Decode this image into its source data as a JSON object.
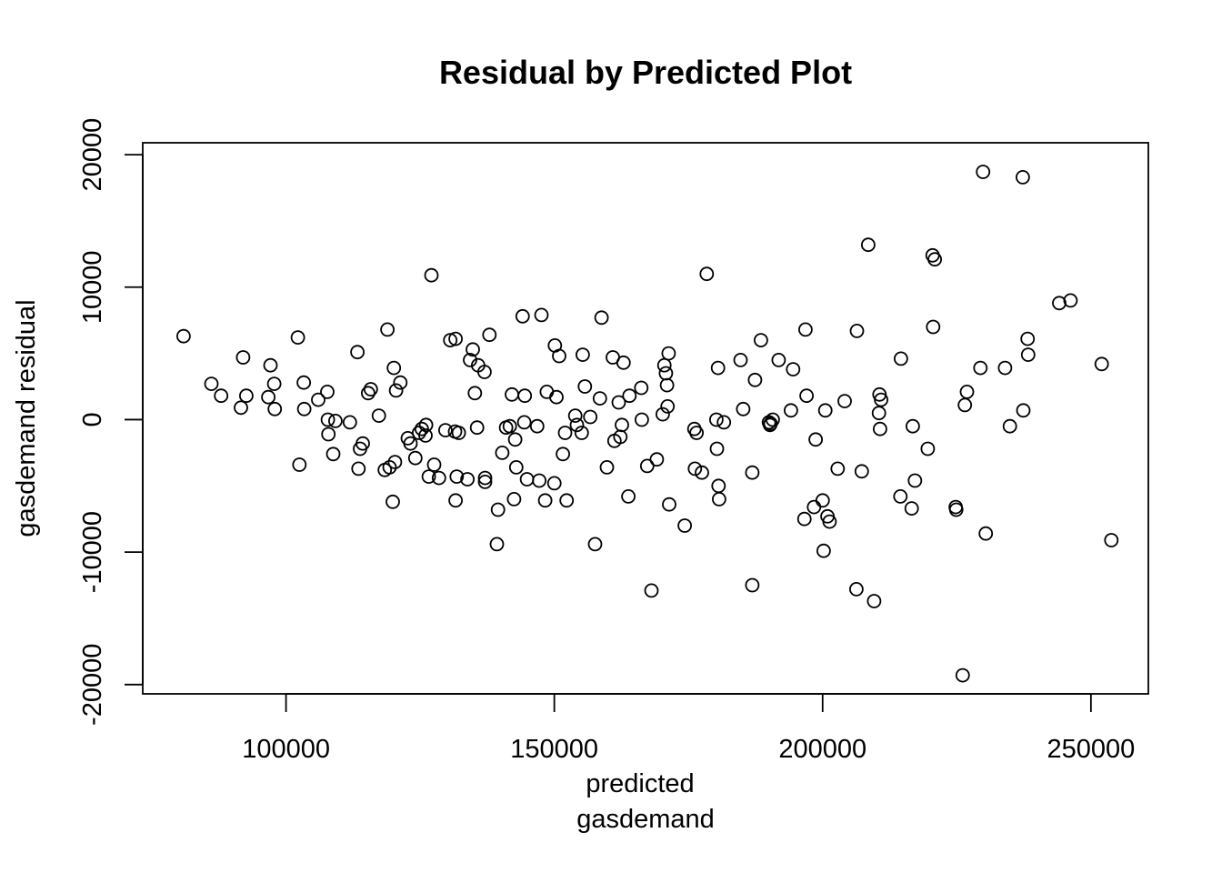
{
  "chart_data": {
    "type": "scatter",
    "title": "Residual by Predicted Plot",
    "xlabel_lines": [
      "predicted",
      "gasdemand"
    ],
    "ylabel": "gasdemand residual",
    "xlim": [
      73300,
      260700
    ],
    "ylim": [
      -20700,
      20900
    ],
    "x_ticks": [
      100000,
      150000,
      200000,
      250000
    ],
    "x_tick_labels": [
      "100000",
      "150000",
      "200000",
      "250000"
    ],
    "y_ticks": [
      -20000,
      -10000,
      0,
      10000,
      20000
    ],
    "y_tick_labels": [
      "-20000",
      "-10000",
      "0",
      "10000",
      "20000"
    ],
    "grid": false,
    "legend": "none",
    "marker": "open-circle",
    "points": [
      [
        80900,
        6300
      ],
      [
        86100,
        2700
      ],
      [
        87900,
        1800
      ],
      [
        91600,
        900
      ],
      [
        92000,
        4700
      ],
      [
        92600,
        1800
      ],
      [
        96700,
        1700
      ],
      [
        97100,
        4100
      ],
      [
        97800,
        2700
      ],
      [
        97900,
        800
      ],
      [
        102200,
        6200
      ],
      [
        102500,
        -3400
      ],
      [
        103300,
        2800
      ],
      [
        103400,
        800
      ],
      [
        106000,
        1500
      ],
      [
        107700,
        2100
      ],
      [
        107800,
        0
      ],
      [
        107900,
        -1100
      ],
      [
        108800,
        -2600
      ],
      [
        109200,
        -100
      ],
      [
        111900,
        -200
      ],
      [
        113300,
        5100
      ],
      [
        113500,
        -3700
      ],
      [
        113800,
        -2200
      ],
      [
        114300,
        -1800
      ],
      [
        115300,
        2000
      ],
      [
        115800,
        2300
      ],
      [
        117300,
        300
      ],
      [
        118400,
        -3800
      ],
      [
        118900,
        6800
      ],
      [
        119300,
        -3600
      ],
      [
        119900,
        -6200
      ],
      [
        120100,
        3900
      ],
      [
        120300,
        -3200
      ],
      [
        120500,
        2200
      ],
      [
        121300,
        2800
      ],
      [
        122700,
        -1400
      ],
      [
        123200,
        -1800
      ],
      [
        124100,
        -2900
      ],
      [
        124800,
        -1000
      ],
      [
        125300,
        -700
      ],
      [
        126000,
        -1200
      ],
      [
        126100,
        -400
      ],
      [
        126600,
        -4300
      ],
      [
        127100,
        10900
      ],
      [
        127600,
        -3400
      ],
      [
        128500,
        -4400
      ],
      [
        129700,
        -800
      ],
      [
        130600,
        6000
      ],
      [
        131500,
        -900
      ],
      [
        131600,
        6100
      ],
      [
        131600,
        -6100
      ],
      [
        131800,
        -4300
      ],
      [
        132200,
        -1000
      ],
      [
        133800,
        -4500
      ],
      [
        134300,
        4500
      ],
      [
        134800,
        5300
      ],
      [
        135200,
        2000
      ],
      [
        135600,
        -600
      ],
      [
        135800,
        4100
      ],
      [
        137000,
        3600
      ],
      [
        137100,
        -4400
      ],
      [
        137100,
        -4700
      ],
      [
        137900,
        6400
      ],
      [
        139300,
        -9400
      ],
      [
        139500,
        -6800
      ],
      [
        140300,
        -2500
      ],
      [
        141000,
        -600
      ],
      [
        141700,
        -500
      ],
      [
        142100,
        1900
      ],
      [
        142500,
        -6000
      ],
      [
        142700,
        -1500
      ],
      [
        142900,
        -3600
      ],
      [
        144100,
        7800
      ],
      [
        144400,
        -200
      ],
      [
        144500,
        1800
      ],
      [
        144900,
        -4500
      ],
      [
        146800,
        -500
      ],
      [
        147200,
        -4600
      ],
      [
        147600,
        7900
      ],
      [
        148300,
        -6100
      ],
      [
        148600,
        2100
      ],
      [
        150000,
        -4800
      ],
      [
        150100,
        5600
      ],
      [
        150400,
        1700
      ],
      [
        150900,
        4800
      ],
      [
        151600,
        -2600
      ],
      [
        152000,
        -1000
      ],
      [
        152300,
        -6100
      ],
      [
        153900,
        300
      ],
      [
        154200,
        -400
      ],
      [
        155100,
        -1000
      ],
      [
        155300,
        4900
      ],
      [
        155700,
        2500
      ],
      [
        156700,
        200
      ],
      [
        157600,
        -9400
      ],
      [
        158500,
        1600
      ],
      [
        158800,
        7700
      ],
      [
        159800,
        -3600
      ],
      [
        160900,
        4700
      ],
      [
        161200,
        -1600
      ],
      [
        162000,
        1300
      ],
      [
        162300,
        -1300
      ],
      [
        162600,
        -400
      ],
      [
        162900,
        4300
      ],
      [
        163800,
        -5800
      ],
      [
        164000,
        1800
      ],
      [
        166200,
        2400
      ],
      [
        166300,
        0
      ],
      [
        167300,
        -3500
      ],
      [
        168100,
        -12900
      ],
      [
        169100,
        -3000
      ],
      [
        170200,
        400
      ],
      [
        170500,
        4100
      ],
      [
        170800,
        3500
      ],
      [
        171000,
        2600
      ],
      [
        171100,
        1000
      ],
      [
        171300,
        5000
      ],
      [
        171400,
        -6400
      ],
      [
        174300,
        -8000
      ],
      [
        176100,
        -700
      ],
      [
        176200,
        -3700
      ],
      [
        176500,
        -1000
      ],
      [
        177500,
        -4000
      ],
      [
        178400,
        11000
      ],
      [
        180200,
        0
      ],
      [
        180300,
        -2200
      ],
      [
        180500,
        3900
      ],
      [
        180600,
        -5000
      ],
      [
        180700,
        -6000
      ],
      [
        181600,
        -200
      ],
      [
        184700,
        4500
      ],
      [
        185200,
        800
      ],
      [
        186900,
        -4000
      ],
      [
        186900,
        -12500
      ],
      [
        187400,
        3000
      ],
      [
        188500,
        6000
      ],
      [
        190000,
        -200
      ],
      [
        190200,
        -400
      ],
      [
        190300,
        -300
      ],
      [
        190700,
        0
      ],
      [
        191800,
        4500
      ],
      [
        194100,
        700
      ],
      [
        194500,
        3800
      ],
      [
        196600,
        -7500
      ],
      [
        196800,
        6800
      ],
      [
        197000,
        1800
      ],
      [
        198400,
        -6600
      ],
      [
        198700,
        -1500
      ],
      [
        200000,
        -6100
      ],
      [
        200200,
        -9900
      ],
      [
        200500,
        700
      ],
      [
        200900,
        -7300
      ],
      [
        201300,
        -7700
      ],
      [
        202800,
        -3700
      ],
      [
        204100,
        1400
      ],
      [
        206300,
        -12800
      ],
      [
        206400,
        6700
      ],
      [
        207300,
        -3900
      ],
      [
        208500,
        13200
      ],
      [
        209600,
        -13700
      ],
      [
        210500,
        500
      ],
      [
        210600,
        1900
      ],
      [
        210700,
        -700
      ],
      [
        210900,
        1500
      ],
      [
        214500,
        -5800
      ],
      [
        214600,
        4600
      ],
      [
        216600,
        -6700
      ],
      [
        216800,
        -500
      ],
      [
        217200,
        -4600
      ],
      [
        219600,
        -2200
      ],
      [
        220500,
        12400
      ],
      [
        220600,
        7000
      ],
      [
        220900,
        12100
      ],
      [
        224800,
        -6600
      ],
      [
        224900,
        -6800
      ],
      [
        226100,
        -19300
      ],
      [
        226500,
        1100
      ],
      [
        226900,
        2100
      ],
      [
        229400,
        3900
      ],
      [
        229900,
        18700
      ],
      [
        230400,
        -8600
      ],
      [
        234000,
        3900
      ],
      [
        234900,
        -500
      ],
      [
        237300,
        18300
      ],
      [
        237400,
        700
      ],
      [
        238200,
        6100
      ],
      [
        238300,
        4900
      ],
      [
        244100,
        8800
      ],
      [
        246200,
        9000
      ],
      [
        252000,
        4200
      ],
      [
        253800,
        -9100
      ]
    ]
  }
}
